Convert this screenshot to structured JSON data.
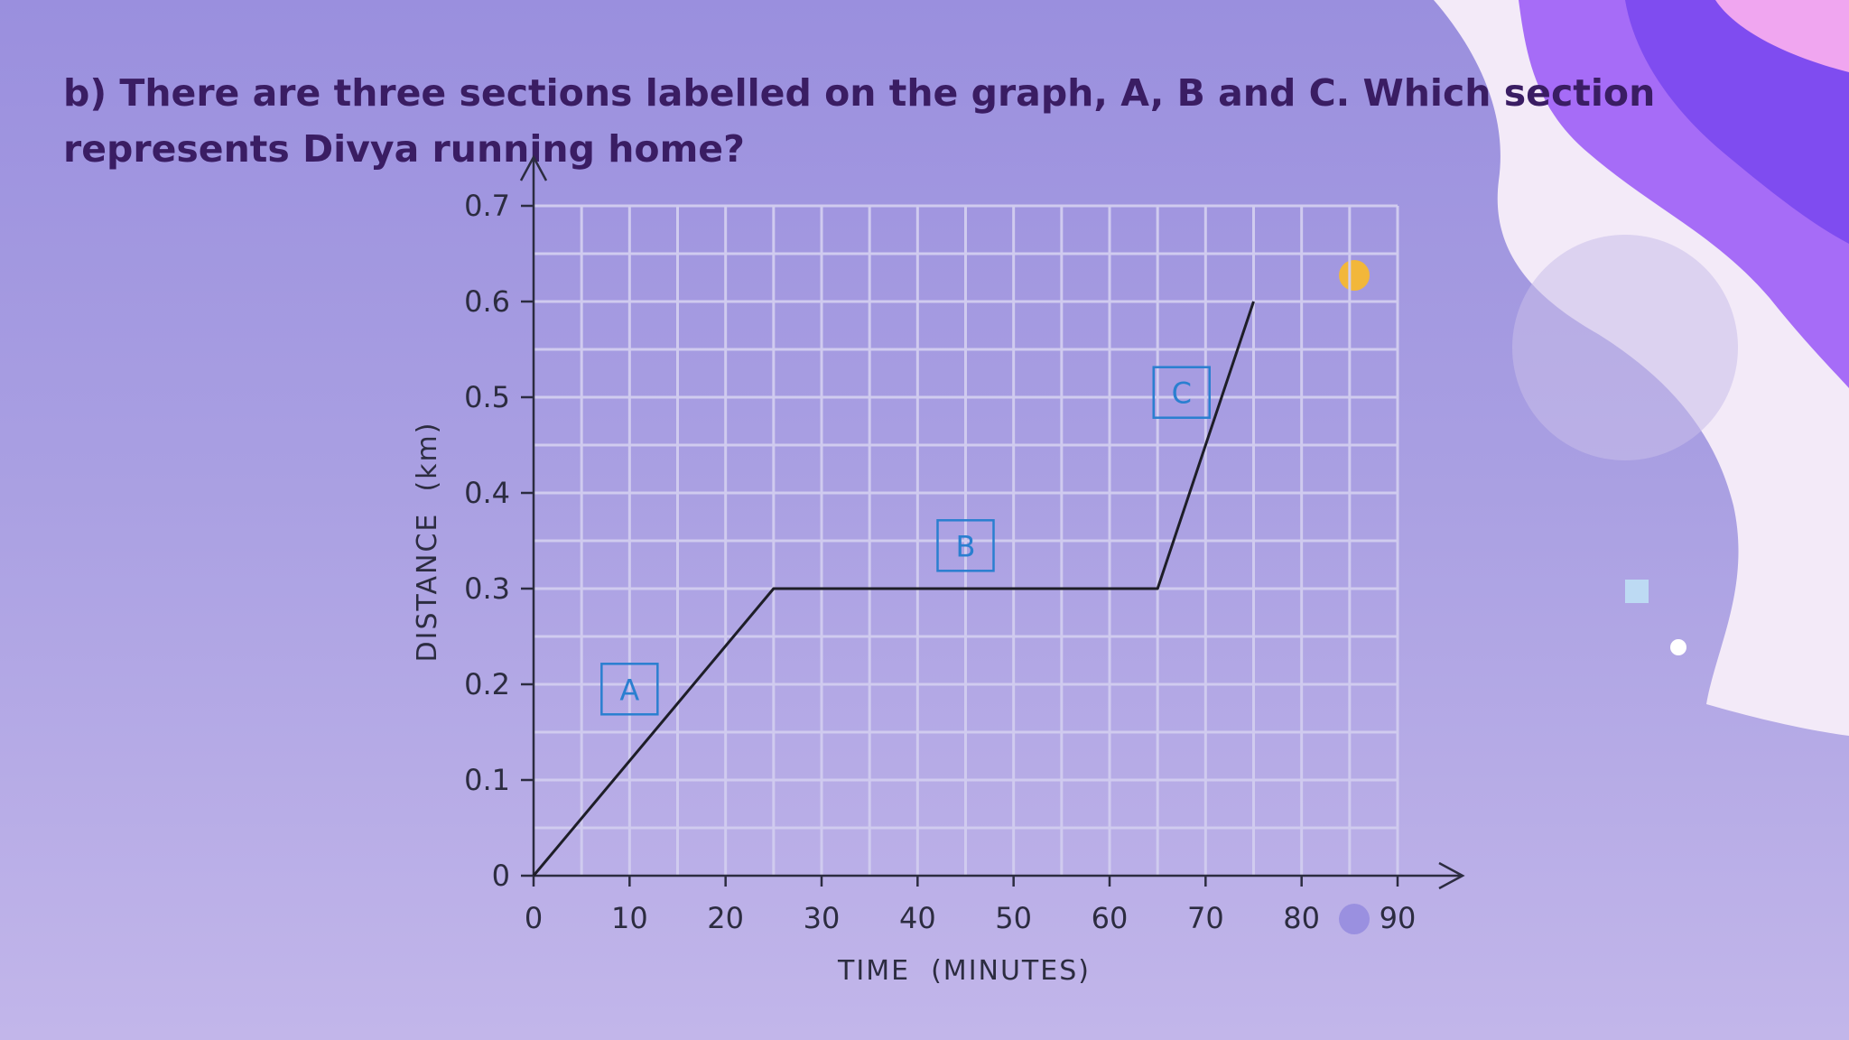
{
  "question": {
    "text": "b) There are three sections labelled on the graph, A, B and C. Which section represents Divya running home?"
  },
  "decor": {
    "colors": {
      "blob_dark": "#7f4cf0",
      "blob_mid": "#a66cf7",
      "blob_light": "#f3eaf8",
      "blob_pink": "#f0a6f0",
      "yellow_dot": "#f2b73a",
      "purple_dot": "#9a90e0",
      "light_square": "#bfe0f4",
      "white_dot": "#ffffff"
    }
  },
  "chart_data": {
    "type": "line",
    "title": "",
    "xlabel": "TIME  (MINUTES)",
    "ylabel": "DISTANCE  (km)",
    "xlim": [
      0,
      90
    ],
    "ylim": [
      0,
      0.7
    ],
    "xticks": [
      0,
      10,
      20,
      30,
      40,
      50,
      60,
      70,
      80,
      90
    ],
    "yticks": [
      0,
      0.1,
      0.2,
      0.3,
      0.4,
      0.5,
      0.6,
      0.7
    ],
    "xtick_labels": [
      "0",
      "10",
      "20",
      "30",
      "40",
      "50",
      "60",
      "70",
      "80",
      "90"
    ],
    "ytick_labels": [
      "0",
      "0.1",
      "0.2",
      "0.3",
      "0.4",
      "0.5",
      "0.6",
      "0.7"
    ],
    "grid": true,
    "grid_step": {
      "x": 5,
      "y": 0.05
    },
    "series": [
      {
        "x": [
          0,
          25,
          65,
          75
        ],
        "y": [
          0,
          0.3,
          0.3,
          0.6
        ]
      }
    ],
    "section_labels": [
      {
        "text": "A",
        "x": 10,
        "y": 0.195
      },
      {
        "text": "B",
        "x": 45,
        "y": 0.345
      },
      {
        "text": "C",
        "x": 67.5,
        "y": 0.505
      }
    ],
    "colors": {
      "line": "#1e1e28",
      "grid": "#d0cbef",
      "axis": "#2c2c40",
      "label_box": "#2a7fd0"
    }
  }
}
